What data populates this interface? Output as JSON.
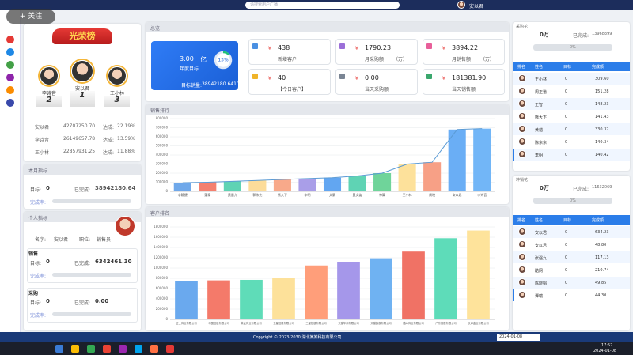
{
  "topbar": {
    "search": "请搜索用户广播",
    "user": "安以君",
    "follow": "+ 关注"
  },
  "left": {
    "honor": {
      "title": "光荣榜",
      "podium": [
        {
          "name": "李诗音",
          "rank": "2"
        },
        {
          "name": "安以君",
          "rank": "1"
        },
        {
          "name": "王小林",
          "rank": "3"
        }
      ],
      "reach_label": "达成:",
      "rows": [
        {
          "name": "安以君",
          "amount": "42707250.70",
          "rate": "22.19%"
        },
        {
          "name": "李诗音",
          "amount": "26149657.78",
          "rate": "13.59%"
        },
        {
          "name": "王小林",
          "amount": "22857931.25",
          "rate": "11.88%"
        }
      ]
    },
    "month": {
      "title": "本月指标",
      "target_label": "目标:",
      "target": "0",
      "done_label": "已完成:",
      "done": "38942180.64",
      "rate_label": "完成率:"
    },
    "personal": {
      "title": "个人指标",
      "name_label": "名字:",
      "name": "安以君",
      "job_label": "职位:",
      "job": "销售员",
      "sections": [
        {
          "title": "销售",
          "target": "0",
          "done": "6342461.30"
        },
        {
          "title": "采购",
          "target": "0",
          "done": "0.00"
        }
      ]
    }
  },
  "overview": {
    "title": "总览",
    "annual": {
      "value": "3.00",
      "unit": "亿",
      "label": "年度目标",
      "progress": {
        "value": 13,
        "label": "13%"
      },
      "sales_label": "目标销量:",
      "sales": "38942180.6410"
    },
    "currency": "¥",
    "cards": [
      {
        "value": "438",
        "label": "新增客户",
        "color": "#4a90e2"
      },
      {
        "value": "1790.23",
        "label": "月采购额",
        "unit": "（万）",
        "color": "#9b6fd8"
      },
      {
        "value": "3894.22",
        "label": "月销售额",
        "unit": "（万）",
        "color": "#e85f9a"
      },
      {
        "value": "40",
        "label": "【今日客户】",
        "color": "#f0b429"
      },
      {
        "value": "0.00",
        "label": "当天采购额",
        "color": "#7a8594"
      },
      {
        "value": "181381.90",
        "label": "当天销售额",
        "color": "#3aa76d"
      }
    ]
  },
  "chart_data": [
    {
      "type": "bar",
      "title": "销售排行",
      "categories": [
        "李静捷",
        "藩泰",
        "黄雷九",
        "郭永先",
        "熊大下",
        "李明",
        "文豪",
        "黄文姿",
        "神翼",
        "王小林",
        "周晓",
        "安以君",
        "李诗音"
      ],
      "series": [
        {
          "type": "bar",
          "colors": [
            "#6fa8ea",
            "#f4806f",
            "#5fd3b4",
            "#fcdc9a",
            "#f8a98a",
            "#a99ee8",
            "#62a6f1",
            "#5fd3b4",
            "#6fd49a",
            "#fde19b",
            "#f7a086",
            "#6aaef5",
            "#72b6f7"
          ],
          "values": [
            95000,
            100000,
            110000,
            120000,
            130000,
            140000,
            150000,
            170000,
            200000,
            300000,
            320000,
            680000,
            690000
          ]
        },
        {
          "type": "line",
          "color": "#5b9bd5",
          "values": [
            95000,
            100000,
            110000,
            120000,
            130000,
            140000,
            150000,
            170000,
            200000,
            300000,
            320000,
            680000,
            690000
          ]
        }
      ],
      "ylim": [
        0,
        800000
      ],
      "yticks": [
        0,
        100000,
        200000,
        300000,
        400000,
        500000,
        600000,
        700000,
        800000
      ],
      "grid": true
    },
    {
      "type": "bar",
      "title": "客户排名",
      "categories": [
        "正士商业有限公司",
        "中国控股有限公司",
        "黄龙商业有限公司",
        "五星控股有限公司",
        "三星控股有限公司",
        "天猫华商有限公司",
        "天猫旗舰有限公司",
        "酷冰商业有限公司",
        "广东德胜有限公司",
        "长津金业有限公司"
      ],
      "series": [
        {
          "type": "bar",
          "colors": [
            "#6aa9ee",
            "#f47a6a",
            "#5fdcb8",
            "#fde19a",
            "#ff9e7a",
            "#a597ea",
            "#6fb2f2",
            "#f07265",
            "#5edcb9",
            "#fee39b"
          ],
          "values": [
            750000,
            760000,
            770000,
            800000,
            1050000,
            1110000,
            1190000,
            1320000,
            1580000,
            1730000
          ]
        }
      ],
      "ylim": [
        0,
        1800000
      ],
      "yticks": [
        0,
        200000,
        400000,
        600000,
        800000,
        1000000,
        1200000,
        1400000,
        1600000,
        1800000
      ],
      "grid": true
    }
  ],
  "right": [
    {
      "title": "采购花",
      "goal": "0万",
      "done_label": "已完成:",
      "done": "13968399",
      "progress": "0%",
      "headers": [
        "排名",
        "姓名",
        "目标",
        "完成额"
      ],
      "rows": [
        [
          "王小林",
          "0",
          "309.60"
        ],
        [
          "周正道",
          "0",
          "151.28"
        ],
        [
          "王智",
          "0",
          "148.23"
        ],
        [
          "熊大下",
          "0",
          "141.43"
        ],
        [
          "黄蜡",
          "0",
          "330.32"
        ],
        [
          "陈东东",
          "0",
          "140.34"
        ],
        [
          "李明",
          "0",
          "140.42"
        ]
      ]
    },
    {
      "title": "冲销花",
      "goal": "0万",
      "done_label": "已完成:",
      "done": "11632069",
      "progress": "0%",
      "headers": [
        "排名",
        "姓名",
        "目标",
        "完成额"
      ],
      "rows": [
        [
          "安以君",
          "0",
          "634.23"
        ],
        [
          "安以君",
          "0",
          "48.80"
        ],
        [
          "张强九",
          "0",
          "117.13"
        ],
        [
          "酷网",
          "0",
          "210.74"
        ],
        [
          "陈晓娟",
          "0",
          "49.85"
        ],
        [
          "谭瑞",
          "0",
          "44.30"
        ]
      ]
    }
  ],
  "footer": {
    "copyright": "Copyright © 2023-2030 湖北某某科技有限公司",
    "date": "2024-01-08",
    "time": "17:57"
  }
}
